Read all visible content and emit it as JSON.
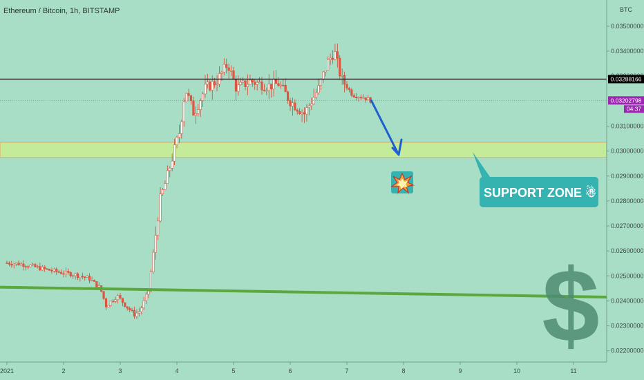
{
  "colors": {
    "background": "#a8dec6",
    "up_candle": "#ffffff",
    "down_candle": "#e8553e",
    "support_zone_fill": "#c4eb9a",
    "support_zone_border": "#e0b070",
    "trend_line": "#5aa83e",
    "resistance_line": "#000000",
    "arrow": "#1f5fcf",
    "callout": "#35b3b1",
    "price_tag_current": "#9c27b0",
    "dollar_sign": "#4e8c72"
  },
  "chart_data": {
    "type": "candlestick",
    "title": "Ethereum / Bitcoin, 1h, BITSTAMP",
    "y_unit": "BTC",
    "ylim": [
      0.02155,
      0.03605
    ],
    "x_ticks": [
      "2021",
      "2",
      "3",
      "4",
      "5",
      "6",
      "7",
      "8",
      "9",
      "10",
      "11"
    ],
    "y_ticks": [
      "0.03500000",
      "0.03400000",
      "0.03300000",
      "0.03100000",
      "0.03000000",
      "0.02900000",
      "0.02800000",
      "0.02700000",
      "0.02600000",
      "0.02500000",
      "0.02400000",
      "0.02300000",
      "0.02200000"
    ],
    "y_tick_values": [
      0.035,
      0.034,
      0.033,
      0.031,
      0.03,
      0.029,
      0.028,
      0.027,
      0.026,
      0.025,
      0.024,
      0.023,
      0.022
    ],
    "horizontal_line": {
      "value": 0.03288166,
      "label": "0.03288166"
    },
    "current_price": {
      "value": 0.03202798,
      "label": "0.03202798",
      "countdown": "04:37"
    },
    "support_zone": {
      "low": 0.02975,
      "high": 0.03035
    },
    "trend_line": {
      "start": 0.02455,
      "end": 0.02415
    },
    "arrow_target": 0.02985,
    "annotation": "SUPPORT ZONE ☃",
    "marker_icon": "explosion-emoji",
    "watermark_icon": "$",
    "last_candle_day": 7.43,
    "price_path": [
      [
        1.0,
        0.02552
      ],
      [
        1.3,
        0.02546
      ],
      [
        1.6,
        0.0253
      ],
      [
        1.9,
        0.02516
      ],
      [
        2.2,
        0.02505
      ],
      [
        2.45,
        0.0249
      ],
      [
        2.65,
        0.0245
      ],
      [
        2.75,
        0.0238
      ],
      [
        2.95,
        0.0242
      ],
      [
        3.1,
        0.0238
      ],
      [
        3.25,
        0.02345
      ],
      [
        3.35,
        0.0236
      ],
      [
        3.5,
        0.0244
      ],
      [
        3.7,
        0.028
      ],
      [
        3.82,
        0.0289
      ],
      [
        3.95,
        0.03
      ],
      [
        4.05,
        0.0308
      ],
      [
        4.15,
        0.0325
      ],
      [
        4.3,
        0.0315
      ],
      [
        4.5,
        0.0325
      ],
      [
        4.7,
        0.0328
      ],
      [
        4.9,
        0.0335
      ],
      [
        5.05,
        0.0325
      ],
      [
        5.3,
        0.0328
      ],
      [
        5.6,
        0.0326
      ],
      [
        5.8,
        0.0327
      ],
      [
        6.0,
        0.032
      ],
      [
        6.25,
        0.0315
      ],
      [
        6.5,
        0.0325
      ],
      [
        6.65,
        0.0335
      ],
      [
        6.78,
        0.034
      ],
      [
        6.9,
        0.0329
      ],
      [
        7.1,
        0.03225
      ],
      [
        7.3,
        0.03215
      ],
      [
        7.43,
        0.03202
      ]
    ]
  }
}
